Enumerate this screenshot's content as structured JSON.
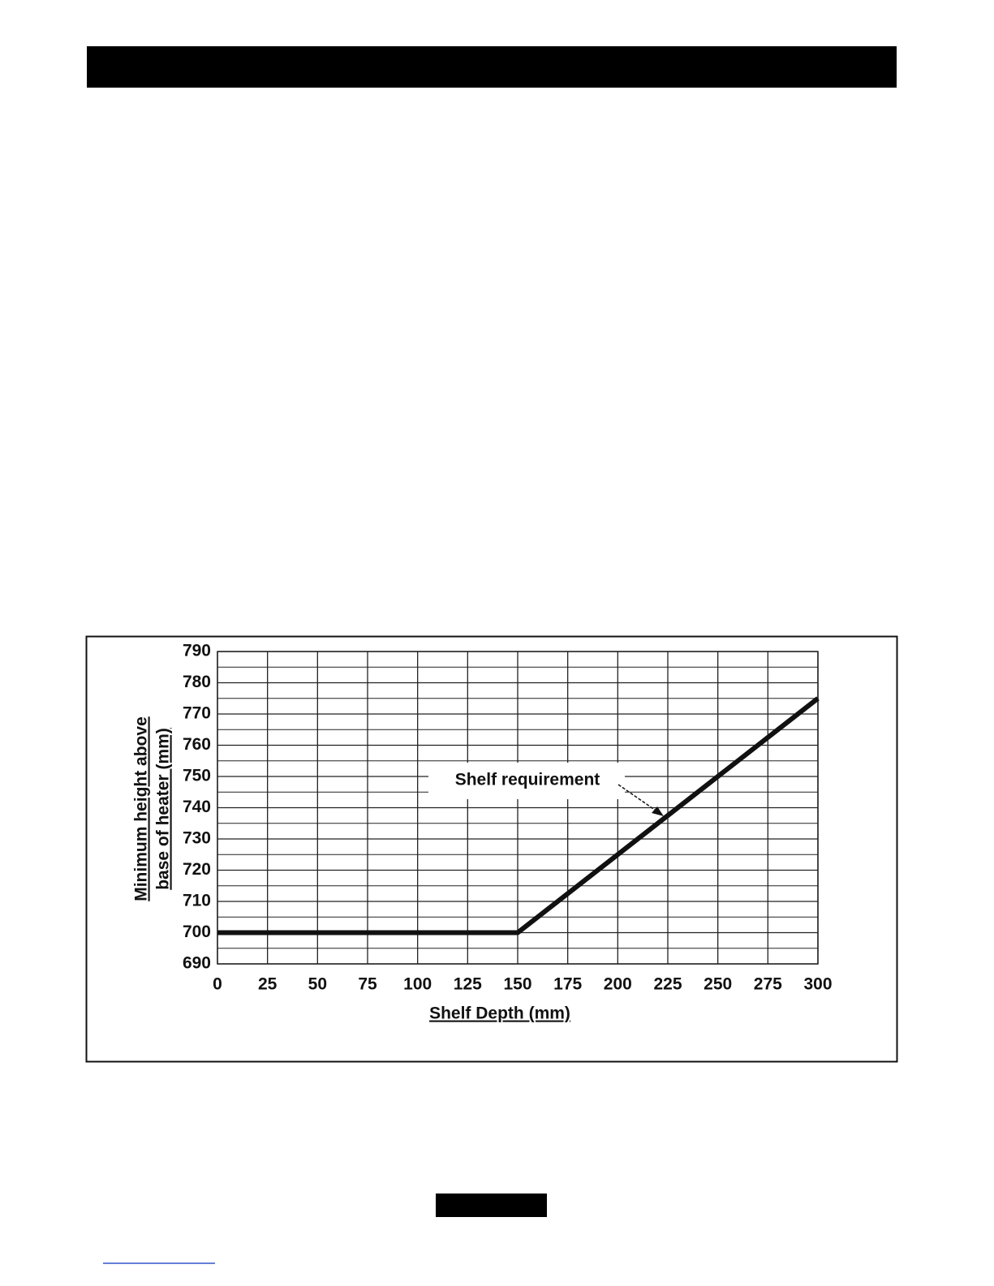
{
  "chart_data": {
    "type": "line",
    "x": [
      0,
      150,
      300
    ],
    "values": [
      700,
      700,
      775
    ],
    "color": "#111111",
    "xlim": [
      0,
      300
    ],
    "xticks": [
      0,
      25,
      50,
      75,
      100,
      125,
      150,
      175,
      200,
      225,
      250,
      275,
      300
    ],
    "ylim": [
      690,
      790
    ],
    "yticks": [
      690,
      700,
      710,
      720,
      730,
      740,
      750,
      760,
      770,
      780,
      790
    ],
    "grid": true,
    "x_label": "Shelf Depth (mm)",
    "y_label": [
      "Minimum height above",
      "base of heater (mm)"
    ],
    "annotation": "Shelf requirement"
  }
}
